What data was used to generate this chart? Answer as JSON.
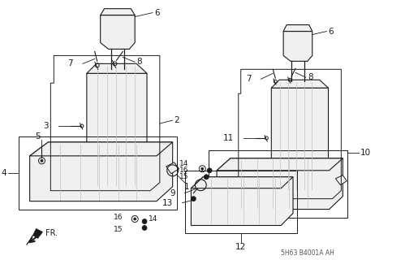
{
  "bg_color": "#ffffff",
  "line_color": "#1a1a1a",
  "fill_color": "#f0f0f0",
  "stripe_color": "#c0c0c0",
  "fig_width": 5.15,
  "fig_height": 3.2,
  "dpi": 100,
  "ref_text": "5H63 B4001A AH"
}
